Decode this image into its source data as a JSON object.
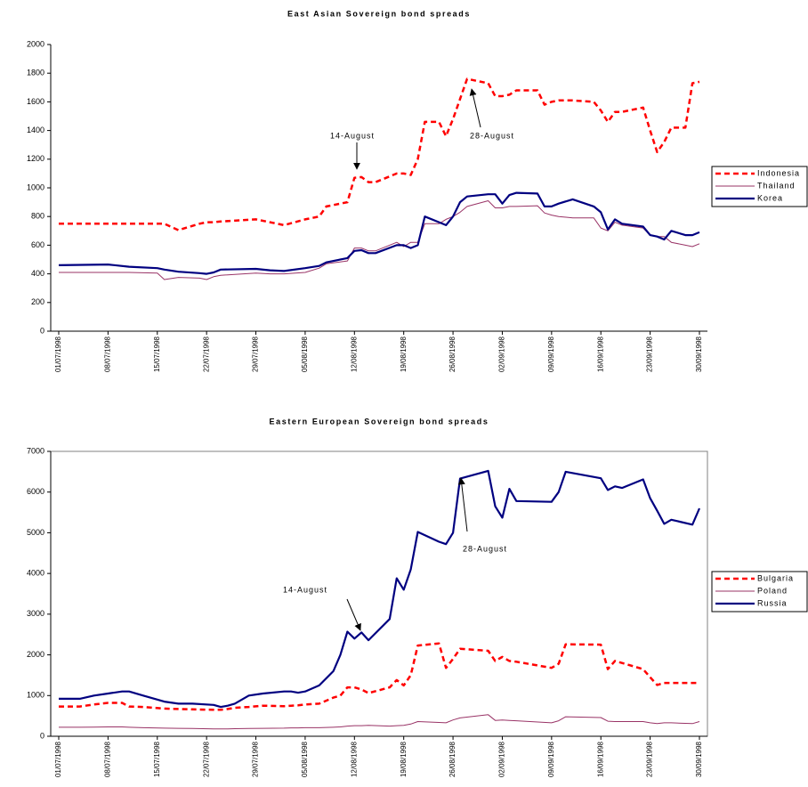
{
  "chart_data": [
    {
      "type": "line",
      "title": "East Asian Sovereign bond spreads",
      "x": [
        "01/07/1998",
        "08/07/1998",
        "11/07/1998",
        "15/07/1998",
        "16/07/1998",
        "18/07/1998",
        "21/07/1998",
        "22/07/1998",
        "23/07/1998",
        "24/07/1998",
        "29/07/1998",
        "31/07/1998",
        "02/08/1998",
        "05/08/1998",
        "07/08/1998",
        "08/08/1998",
        "11/08/1998",
        "12/08/1998",
        "13/08/1998",
        "14/08/1998",
        "15/08/1998",
        "18/08/1998",
        "19/08/1998",
        "20/08/1998",
        "21/08/1998",
        "22/08/1998",
        "24/08/1998",
        "25/08/1998",
        "26/08/1998",
        "27/08/1998",
        "28/08/1998",
        "31/08/1998",
        "01/09/1998",
        "02/09/1998",
        "03/09/1998",
        "04/09/1998",
        "07/09/1998",
        "08/09/1998",
        "09/09/1998",
        "10/09/1998",
        "12/09/1998",
        "15/09/1998",
        "16/09/1998",
        "17/09/1998",
        "18/09/1998",
        "19/09/1998",
        "22/09/1998",
        "23/09/1998",
        "24/09/1998",
        "25/09/1998",
        "26/09/1998",
        "28/09/1998",
        "29/09/1998",
        "30/09/1998"
      ],
      "series": [
        {
          "name": "Indonesia",
          "color": "#ff0000",
          "dash": true,
          "width": 2.5,
          "values": [
            750,
            750,
            750,
            750,
            750,
            705,
            750,
            760,
            760,
            765,
            780,
            760,
            740,
            780,
            800,
            870,
            900,
            1070,
            1075,
            1040,
            1040,
            1100,
            1100,
            1090,
            1200,
            1460,
            1460,
            1360,
            1480,
            1620,
            1760,
            1730,
            1640,
            1640,
            1650,
            1680,
            1680,
            1580,
            1600,
            1610,
            1610,
            1600,
            1540,
            1460,
            1530,
            1530,
            1560,
            1400,
            1250,
            1320,
            1420,
            1420,
            1730,
            1740
          ]
        },
        {
          "name": "Thailand",
          "color": "#993366",
          "dash": false,
          "width": 1,
          "values": [
            410,
            410,
            410,
            405,
            360,
            375,
            370,
            360,
            380,
            390,
            405,
            400,
            400,
            410,
            440,
            470,
            490,
            580,
            580,
            560,
            560,
            620,
            590,
            620,
            620,
            750,
            750,
            780,
            800,
            830,
            870,
            910,
            860,
            860,
            870,
            870,
            875,
            825,
            810,
            800,
            790,
            790,
            720,
            700,
            760,
            740,
            720,
            670,
            660,
            660,
            620,
            600,
            590,
            610
          ]
        },
        {
          "name": "Korea",
          "color": "#000080",
          "dash": false,
          "width": 2.2,
          "values": [
            460,
            465,
            450,
            440,
            430,
            415,
            405,
            400,
            410,
            430,
            435,
            425,
            420,
            440,
            455,
            480,
            510,
            560,
            565,
            545,
            545,
            600,
            600,
            580,
            600,
            800,
            760,
            740,
            800,
            900,
            940,
            955,
            955,
            890,
            950,
            965,
            960,
            870,
            870,
            890,
            920,
            870,
            830,
            710,
            780,
            750,
            730,
            670,
            660,
            640,
            700,
            670,
            670,
            690
          ]
        }
      ],
      "xlim": [
        "01/07/1998",
        "30/09/1998"
      ],
      "xticks": [
        "01/07/1998",
        "08/07/1998",
        "15/07/1998",
        "22/07/1998",
        "29/07/1998",
        "05/08/1998",
        "12/08/1998",
        "19/08/1998",
        "26/08/1998",
        "02/09/1998",
        "09/09/1998",
        "16/09/1998",
        "23/09/1998",
        "30/09/1998"
      ],
      "ylim": [
        0,
        2000
      ],
      "yticks": [
        0,
        200,
        400,
        600,
        800,
        1000,
        1200,
        1400,
        1600,
        1800,
        2000
      ],
      "plot_border": false,
      "legend": "right",
      "annotations": [
        "14-August",
        "28-August"
      ]
    },
    {
      "type": "line",
      "title": "Eastern European Sovereign bond spreads",
      "x": [
        "01/07/1998",
        "04/07/1998",
        "06/07/1998",
        "08/07/1998",
        "10/07/1998",
        "11/07/1998",
        "13/07/1998",
        "16/07/1998",
        "18/07/1998",
        "20/07/1998",
        "23/07/1998",
        "24/07/1998",
        "25/07/1998",
        "26/07/1998",
        "28/07/1998",
        "30/07/1998",
        "02/08/1998",
        "03/08/1998",
        "04/08/1998",
        "05/08/1998",
        "07/08/1998",
        "09/08/1998",
        "10/08/1998",
        "11/08/1998",
        "12/08/1998",
        "13/08/1998",
        "14/08/1998",
        "17/08/1998",
        "18/08/1998",
        "19/08/1998",
        "20/08/1998",
        "21/08/1998",
        "24/08/1998",
        "25/08/1998",
        "26/08/1998",
        "27/08/1998",
        "31/08/1998",
        "01/09/1998",
        "02/09/1998",
        "03/09/1998",
        "04/09/1998",
        "09/09/1998",
        "10/09/1998",
        "11/09/1998",
        "16/09/1998",
        "17/09/1998",
        "18/09/1998",
        "19/09/1998",
        "22/09/1998",
        "23/09/1998",
        "24/09/1998",
        "25/09/1998",
        "26/09/1998",
        "29/09/1998",
        "30/09/1998"
      ],
      "series": [
        {
          "name": "Bulgaria",
          "color": "#ff0000",
          "dash": true,
          "width": 2.5,
          "values": [
            730,
            730,
            780,
            820,
            820,
            730,
            720,
            680,
            670,
            660,
            650,
            650,
            670,
            700,
            720,
            750,
            740,
            750,
            760,
            780,
            800,
            950,
            1000,
            1200,
            1200,
            1150,
            1060,
            1200,
            1380,
            1250,
            1500,
            2230,
            2280,
            1680,
            1900,
            2150,
            2100,
            1850,
            1950,
            1850,
            1830,
            1680,
            1780,
            2260,
            2250,
            1650,
            1850,
            1800,
            1650,
            1450,
            1260,
            1310,
            1310,
            1310,
            1310
          ]
        },
        {
          "name": "Poland",
          "color": "#993366",
          "dash": false,
          "width": 1,
          "values": [
            220,
            220,
            225,
            230,
            230,
            220,
            210,
            200,
            195,
            190,
            180,
            180,
            180,
            185,
            190,
            195,
            200,
            205,
            205,
            210,
            210,
            220,
            230,
            250,
            260,
            260,
            270,
            250,
            260,
            270,
            300,
            360,
            340,
            330,
            400,
            450,
            530,
            390,
            400,
            390,
            380,
            330,
            380,
            480,
            460,
            370,
            360,
            360,
            360,
            330,
            310,
            330,
            330,
            310,
            360
          ]
        },
        {
          "name": "Russia",
          "color": "#000080",
          "dash": false,
          "width": 2.2,
          "values": [
            920,
            920,
            1000,
            1050,
            1100,
            1100,
            1000,
            850,
            800,
            800,
            770,
            720,
            750,
            800,
            1000,
            1050,
            1100,
            1100,
            1070,
            1100,
            1250,
            1600,
            2000,
            2570,
            2400,
            2550,
            2360,
            2880,
            3880,
            3600,
            4100,
            5020,
            4780,
            4720,
            5000,
            6330,
            6520,
            5650,
            5370,
            6080,
            5780,
            5760,
            6000,
            6500,
            6340,
            6050,
            6140,
            6100,
            6310,
            5850,
            5540,
            5220,
            5320,
            5200,
            5600
          ]
        }
      ],
      "xlim": [
        "01/07/1998",
        "30/09/1998"
      ],
      "xticks": [
        "01/07/1998",
        "08/07/1998",
        "15/07/1998",
        "22/07/1998",
        "29/07/1998",
        "05/08/1998",
        "12/08/1998",
        "19/08/1998",
        "26/08/1998",
        "02/09/1998",
        "09/09/1998",
        "16/09/1998",
        "23/09/1998",
        "30/09/1998"
      ],
      "ylim": [
        0,
        7000
      ],
      "yticks": [
        0,
        1000,
        2000,
        3000,
        4000,
        5000,
        6000,
        7000
      ],
      "plot_border": true,
      "legend": "right",
      "annotations": [
        "14-August",
        "28-August"
      ]
    }
  ]
}
